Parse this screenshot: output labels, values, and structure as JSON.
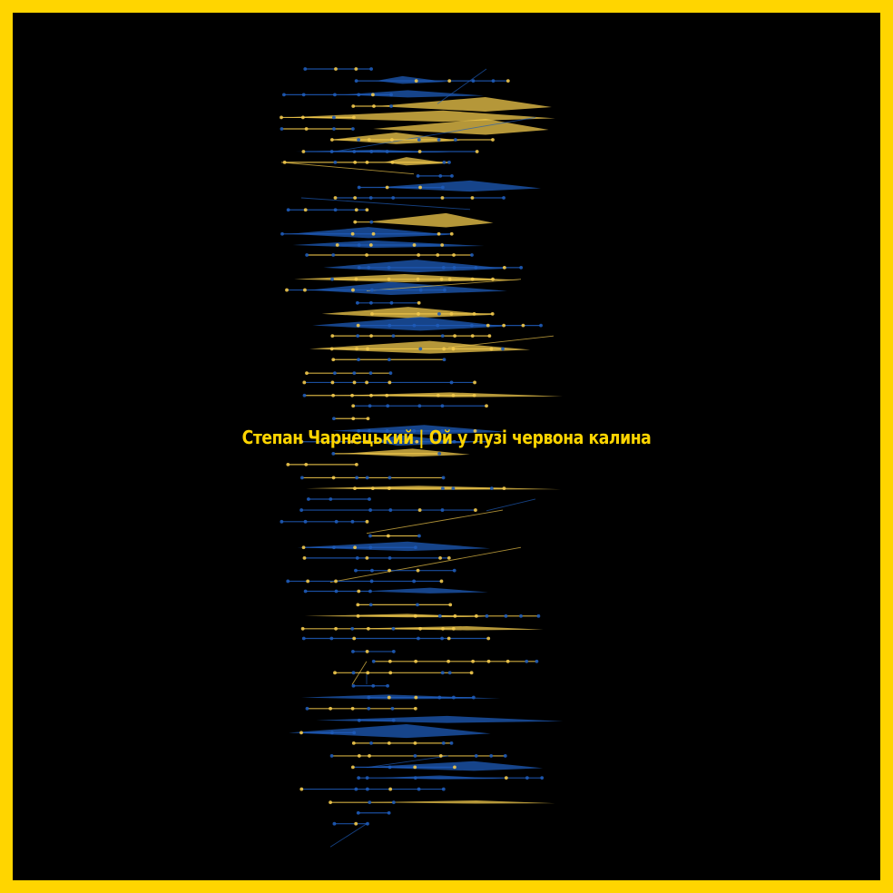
{
  "title": "Степан Чарнецький | Ой у лузі червона калина",
  "colors": {
    "frame": "#FFD500",
    "background": "#000000",
    "blue": "#1E5BB8",
    "yellow": "#F2C94C",
    "title": "#FFD500"
  }
}
